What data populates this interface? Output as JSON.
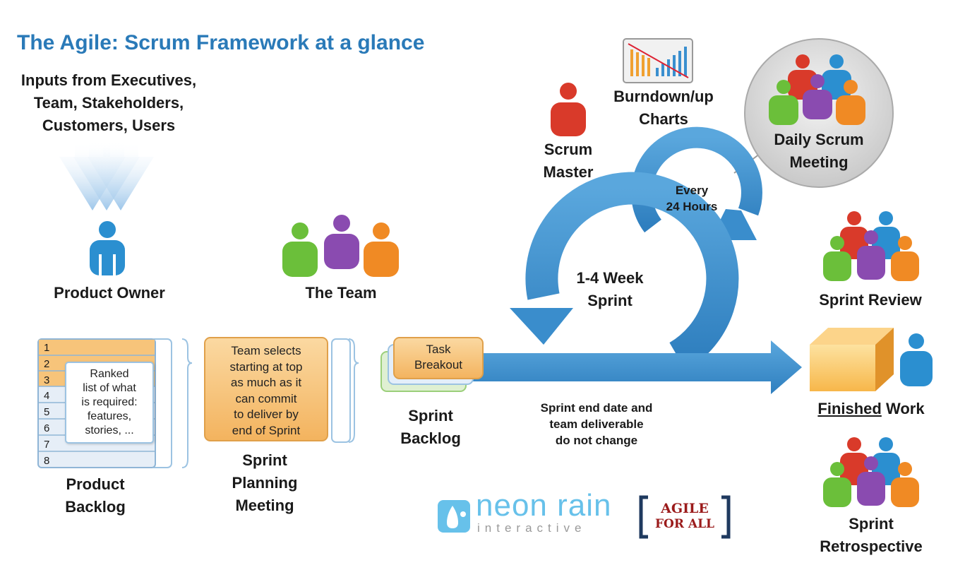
{
  "title": "The Agile: Scrum Framework at a glance",
  "inputs": {
    "lines": [
      "Inputs from Executives,",
      "Team, Stakeholders,",
      "Customers, Users"
    ]
  },
  "product_owner": {
    "label": "Product Owner"
  },
  "the_team": {
    "label": "The Team"
  },
  "scrum_master": {
    "lines": [
      "Scrum",
      "Master"
    ]
  },
  "burndown": {
    "lines": [
      "Burndown/up",
      "Charts"
    ]
  },
  "daily_scrum": {
    "lines": [
      "Daily Scrum",
      "Meeting"
    ]
  },
  "every_24": {
    "lines": [
      "Every",
      "24 Hours"
    ]
  },
  "sprint_cycle": {
    "lines": [
      "1-4 Week",
      "Sprint"
    ]
  },
  "product_backlog": {
    "rows": [
      "1",
      "2",
      "3",
      "4",
      "5",
      "6",
      "7",
      "8"
    ],
    "note": [
      "Ranked",
      "list of what",
      "is required:",
      "features,",
      "stories, ..."
    ],
    "label": [
      "Product",
      "Backlog"
    ]
  },
  "sprint_planning": {
    "note": [
      "Team selects",
      "starting at top",
      "as much as it",
      "can commit",
      "to deliver by",
      "end of Sprint"
    ],
    "label": [
      "Sprint",
      "Planning",
      "Meeting"
    ]
  },
  "sprint_backlog": {
    "note": [
      "Task",
      "Breakout"
    ],
    "label": [
      "Sprint",
      "Backlog"
    ]
  },
  "sprint_end_note": {
    "lines": [
      "Sprint end date and",
      "team deliverable",
      "do not change"
    ]
  },
  "sprint_review": {
    "label": "Sprint Review"
  },
  "finished_work": {
    "underlined": "Finished",
    "rest": " Work"
  },
  "sprint_retrospective": {
    "lines": [
      "Sprint",
      "Retrospective"
    ]
  },
  "logos": {
    "neon_rain": {
      "name": "neon rain",
      "sub": "interactive"
    },
    "agile_for_all": {
      "line1": "AGILE",
      "line2": "FOR ALL"
    }
  },
  "colors": {
    "title_blue": "#2a7ab8",
    "arrow_blue": "#3c8fcc",
    "person_blue": "#2b8fd0",
    "person_red": "#d93a2a",
    "person_green": "#6bbf3a",
    "person_purple": "#8a4bb0",
    "person_orange": "#f08a24",
    "note_orange": "#f7c47a",
    "agile_red": "#9b1b1b",
    "agile_navy": "#1f3a5f"
  }
}
